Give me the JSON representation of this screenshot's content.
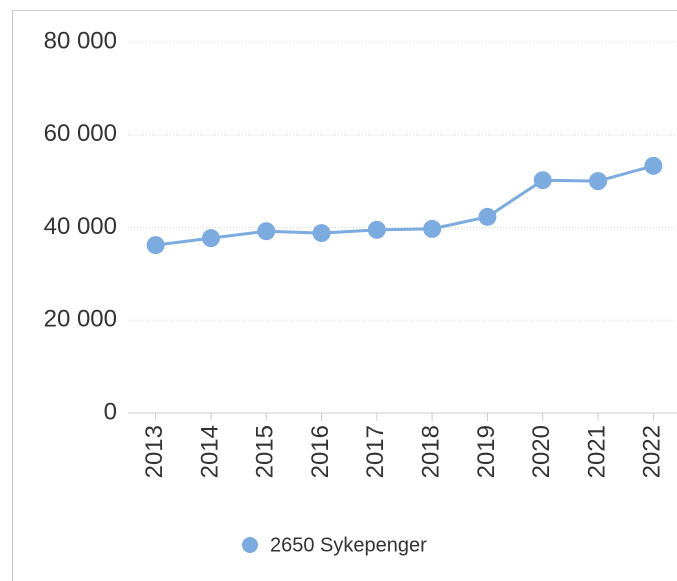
{
  "chart_data": {
    "type": "line",
    "categories": [
      "2013",
      "2014",
      "2015",
      "2016",
      "2017",
      "2018",
      "2019",
      "2020",
      "2021",
      "2022"
    ],
    "series": [
      {
        "name": "2650 Sykepenger",
        "color": "#7cabe0",
        "values": [
          36200,
          37700,
          39200,
          38800,
          39500,
          39700,
          42300,
          50200,
          50000,
          53300
        ]
      }
    ],
    "ylim": [
      0,
      80000
    ],
    "yticks": [
      0,
      {
        "value": 20000,
        "label": "20 000"
      },
      {
        "value": 40000,
        "label": "40 000"
      },
      {
        "value": 60000,
        "label": "60 000"
      },
      {
        "value": 80000,
        "label": "80 000"
      }
    ],
    "grid": true
  }
}
